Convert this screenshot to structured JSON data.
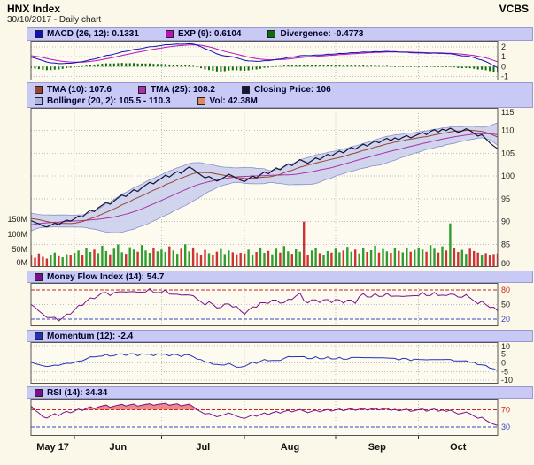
{
  "header": {
    "title": "HNX Index",
    "subtitle": "30/10/2017 - Daily chart",
    "brand": "VCBS"
  },
  "legends": {
    "macd": [
      {
        "label": "MACD (26, 12): 0.1331",
        "color": "#1111bb"
      },
      {
        "label": "EXP (9): 0.6104",
        "color": "#bb11bb"
      },
      {
        "label": "Divergence: -0.4773",
        "color": "#0a6e0a"
      }
    ],
    "main_row1": [
      {
        "label": "TMA (10): 107.6",
        "color": "#994433"
      },
      {
        "label": "TMA (25): 108.2",
        "color": "#aa33aa"
      },
      {
        "label": "Closing Price: 106",
        "color": "#14143c"
      }
    ],
    "main_row2": [
      {
        "label": "Bollinger (20, 2): 105.5 - 110.3",
        "color": "#aab4e6"
      },
      {
        "label": "Vol: 42.38M",
        "color": "#dd8866"
      }
    ],
    "mfi": [
      {
        "label": "Money Flow Index (14): 54.7",
        "color": "#7a1090"
      }
    ],
    "momentum": [
      {
        "label": "Momentum (12): -2.4",
        "color": "#2233bb"
      }
    ],
    "rsi": [
      {
        "label": "RSI (14): 34.34",
        "color": "#7a1090"
      }
    ]
  },
  "colors": {
    "page_bg": "#fbf8e9",
    "panel_bg": "#fdfbf0",
    "legend_bg": "#c9c9f6",
    "legend_border": "#9a9ad0",
    "panel_border": "#555555",
    "grid": "#bdbdbd",
    "macd_line": "#1111bb",
    "exp_line": "#bb11bb",
    "divergence_bar": "#0a6e0a",
    "close_line": "#14143c",
    "tma10_line": "#994433",
    "tma25_line": "#aa33aa",
    "bollinger_fill": "#c9cdec",
    "bollinger_line": "#8890cc",
    "volume_up": "#2f9e2f",
    "volume_down": "#cc3333",
    "mfi_line": "#7a1090",
    "momentum_line": "#2233bb",
    "rsi_line": "#7a1090",
    "overbought_fill": "#e04040",
    "threshold_red": "#cc2222",
    "threshold_blue": "#3344cc",
    "axis_text": "#222222",
    "month_text": "#111111"
  },
  "chart_data": {
    "type": "line",
    "title": "HNX Index",
    "x_labels": [
      "May 17",
      "Jun",
      "Jul",
      "Aug",
      "Sep",
      "Oct"
    ],
    "month_start_indices": [
      0,
      11,
      33,
      54,
      77,
      98
    ],
    "close": [
      90.2,
      89.8,
      89.5,
      89.0,
      88.8,
      89.2,
      89.6,
      89.3,
      89.9,
      90.3,
      90.1,
      90.6,
      91.2,
      91.0,
      91.8,
      92.5,
      92.2,
      93.0,
      93.6,
      94.2,
      93.8,
      94.5,
      95.2,
      95.8,
      95.5,
      96.3,
      97.0,
      96.6,
      97.4,
      98.0,
      98.6,
      98.3,
      99.0,
      99.5,
      100.2,
      99.8,
      100.5,
      101.0,
      100.6,
      101.4,
      102.0,
      101.5,
      100.8,
      100.2,
      99.6,
      99.9,
      99.4,
      98.9,
      99.3,
      99.8,
      100.4,
      100.0,
      99.5,
      99.1,
      98.8,
      99.4,
      100.0,
      99.6,
      100.3,
      100.9,
      100.5,
      101.2,
      101.8,
      101.4,
      102.1,
      102.7,
      102.3,
      103.0,
      103.6,
      103.2,
      102.8,
      103.4,
      104.0,
      103.6,
      104.2,
      104.8,
      104.4,
      105.0,
      105.5,
      105.1,
      105.8,
      106.3,
      105.9,
      106.5,
      107.0,
      106.6,
      107.2,
      107.7,
      107.3,
      107.9,
      108.3,
      107.8,
      108.4,
      108.0,
      108.5,
      108.9,
      108.4,
      108.8,
      109.2,
      109.6,
      109.1,
      109.8,
      110.2,
      109.7,
      110.3,
      110.0,
      110.5,
      110.1,
      109.6,
      109.9,
      110.4,
      110.0,
      109.4,
      108.8,
      109.1,
      108.2,
      107.3,
      106.6,
      106.0
    ],
    "volume_millions": [
      35,
      28,
      42,
      31,
      25,
      38,
      45,
      33,
      29,
      40,
      36,
      44,
      52,
      38,
      61,
      47,
      55,
      43,
      68,
      50,
      39,
      58,
      72,
      46,
      41,
      63,
      55,
      48,
      70,
      52,
      44,
      60,
      49,
      55,
      47,
      66,
      52,
      41,
      58,
      73,
      49,
      62,
      45,
      38,
      54,
      43,
      36,
      48,
      57,
      40,
      52,
      46,
      39,
      44,
      42,
      55,
      38,
      47,
      62,
      44,
      51,
      39,
      58,
      45,
      67,
      49,
      41,
      56,
      48,
      148,
      38,
      52,
      60,
      43,
      37,
      50,
      45,
      58,
      46,
      52,
      64,
      48,
      55,
      42,
      60,
      47,
      53,
      68,
      45,
      57,
      49,
      44,
      59,
      51,
      46,
      62,
      48,
      54,
      62,
      55,
      48,
      70,
      58,
      45,
      66,
      52,
      142,
      60,
      47,
      54,
      41,
      58,
      50,
      45,
      38,
      43,
      36,
      40,
      42.38
    ],
    "prehistory_close": [
      85.5,
      85.8,
      86.1,
      86.5,
      86.8,
      87.1,
      87.5,
      87.8,
      88.1,
      88.4,
      88.7,
      89.0,
      89.3,
      89.6,
      89.9,
      90.2,
      90.5,
      90.7,
      90.9,
      91.0,
      90.9,
      90.8,
      90.6,
      90.5,
      90.4,
      90.3
    ],
    "prehistory_volume": 40,
    "panels": {
      "macd": {
        "fast": 12,
        "slow": 26,
        "signal": 9,
        "ylim": [
          -1.4,
          2.6
        ],
        "yticks": [
          2,
          1,
          0,
          -1
        ],
        "last": {
          "macd": 0.1331,
          "exp": 0.6104,
          "divergence": -0.4773
        }
      },
      "price": {
        "ylim": [
          80,
          115
        ],
        "yticks": [
          115,
          110,
          105,
          100,
          95,
          90,
          85,
          80
        ],
        "tma_periods": [
          10,
          25
        ],
        "bollinger": {
          "period": 20,
          "mult": 2
        },
        "volume_axis": {
          "max": 150,
          "ticks_millions": [
            150,
            100,
            50,
            0
          ]
        },
        "last": {
          "tma10": 107.6,
          "tma25": 108.2,
          "close": 106,
          "bollinger": "105.5 - 110.3",
          "volume": "42.38M"
        }
      },
      "mfi": {
        "period": 14,
        "ylim": [
          5,
          95
        ],
        "yticks": [
          {
            "v": 80,
            "color": "#cc2222"
          },
          {
            "v": 50
          },
          {
            "v": 20,
            "color": "#3344cc"
          }
        ],
        "last": 54.7
      },
      "momentum": {
        "period": 12,
        "ylim": [
          -12,
          12
        ],
        "yticks": [
          10,
          5,
          0,
          -5,
          -10
        ],
        "last": -2.4
      },
      "rsi": {
        "period": 14,
        "ylim": [
          10,
          95
        ],
        "yticks": [
          {
            "v": 70,
            "color": "#cc2222"
          },
          {
            "v": 30,
            "color": "#3344cc"
          }
        ],
        "last": 34.34
      }
    }
  }
}
